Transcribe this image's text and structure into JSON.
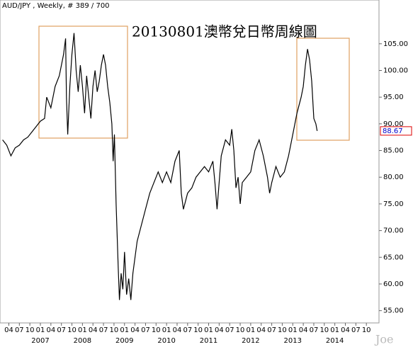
{
  "chart_data": {
    "type": "line",
    "header": "AUD/JPY , Weekly, # 389 / 700",
    "title": "20130801澳幣兌日幣周線圖",
    "watermark": "Joe",
    "color": "#000000",
    "last_value": 88.67,
    "x": [
      2006.1,
      2006.2,
      2006.3,
      2006.4,
      2006.5,
      2006.6,
      2006.7,
      2006.8,
      2006.9,
      2007.0,
      2007.1,
      2007.15,
      2007.25,
      2007.35,
      2007.45,
      2007.5,
      2007.55,
      2007.6,
      2007.62,
      2007.65,
      2007.7,
      2007.75,
      2007.8,
      2007.85,
      2007.9,
      2007.95,
      2008.0,
      2008.05,
      2008.1,
      2008.15,
      2008.2,
      2008.25,
      2008.3,
      2008.35,
      2008.4,
      2008.45,
      2008.5,
      2008.55,
      2008.6,
      2008.65,
      2008.7,
      2008.73,
      2008.76,
      2008.8,
      2008.85,
      2008.88,
      2008.92,
      2008.96,
      2009.0,
      2009.05,
      2009.1,
      2009.15,
      2009.2,
      2009.3,
      2009.4,
      2009.5,
      2009.6,
      2009.7,
      2009.8,
      2009.9,
      2010.0,
      2010.1,
      2010.2,
      2010.3,
      2010.35,
      2010.4,
      2010.5,
      2010.6,
      2010.7,
      2010.8,
      2010.9,
      2011.0,
      2011.1,
      2011.15,
      2011.2,
      2011.3,
      2011.4,
      2011.5,
      2011.55,
      2011.6,
      2011.65,
      2011.7,
      2011.75,
      2011.8,
      2011.9,
      2012.0,
      2012.1,
      2012.2,
      2012.3,
      2012.4,
      2012.45,
      2012.5,
      2012.6,
      2012.7,
      2012.8,
      2012.9,
      2013.0,
      2013.1,
      2013.2,
      2013.25,
      2013.3,
      2013.35,
      2013.4,
      2013.45,
      2013.5,
      2013.55,
      2013.58
    ],
    "values": [
      87,
      86,
      84,
      85.5,
      86,
      87,
      87.5,
      88.5,
      89.5,
      90.5,
      91,
      95,
      93,
      97,
      99,
      101,
      103,
      106,
      95,
      88,
      97,
      103,
      107,
      100,
      96,
      101,
      97,
      92,
      99,
      95,
      91,
      97,
      100,
      96,
      98,
      101,
      103,
      101,
      97,
      94,
      90,
      83,
      88,
      75,
      63,
      57,
      62,
      59,
      66,
      58,
      61,
      57,
      62,
      68,
      71,
      74,
      77,
      79,
      81,
      79,
      81,
      79,
      83,
      85,
      77,
      74,
      77,
      78,
      80,
      81,
      82,
      81,
      83,
      79,
      74,
      84,
      87,
      86,
      89,
      85,
      78,
      80,
      75,
      79,
      80,
      81,
      85,
      87,
      84,
      80,
      77,
      79,
      82,
      80,
      81,
      84,
      88,
      92,
      95,
      97,
      101,
      104,
      102,
      98,
      91,
      90,
      88.67
    ],
    "xlim": [
      2006.04,
      2015.05
    ],
    "ylim": [
      52.7,
      113.2
    ],
    "yticks": [
      {
        "value": 55,
        "label": "55.00"
      },
      {
        "value": 60,
        "label": "60.00"
      },
      {
        "value": 65,
        "label": "65.00"
      },
      {
        "value": 70,
        "label": "70.00"
      },
      {
        "value": 75,
        "label": "75.00"
      },
      {
        "value": 80,
        "label": "80.00"
      },
      {
        "value": 85,
        "label": "85.00"
      },
      {
        "value": 90,
        "label": "90.00"
      },
      {
        "value": 95,
        "label": "95.00"
      },
      {
        "value": 100,
        "label": "100.00"
      },
      {
        "value": 105,
        "label": "105.00"
      }
    ],
    "xticks": [
      {
        "value": 2006.25,
        "label": "04"
      },
      {
        "value": 2006.5,
        "label": "07"
      },
      {
        "value": 2006.75,
        "label": "10"
      },
      {
        "value": 2007.0,
        "label": "01"
      },
      {
        "value": 2007.25,
        "label": "04"
      },
      {
        "value": 2007.5,
        "label": "07"
      },
      {
        "value": 2007.75,
        "label": "10"
      },
      {
        "value": 2008.0,
        "label": "01"
      },
      {
        "value": 2008.25,
        "label": "04"
      },
      {
        "value": 2008.5,
        "label": "07"
      },
      {
        "value": 2008.75,
        "label": "10"
      },
      {
        "value": 2009.0,
        "label": "01"
      },
      {
        "value": 2009.25,
        "label": "04"
      },
      {
        "value": 2009.5,
        "label": "07"
      },
      {
        "value": 2009.75,
        "label": "10"
      },
      {
        "value": 2010.0,
        "label": "01"
      },
      {
        "value": 2010.25,
        "label": "04"
      },
      {
        "value": 2010.5,
        "label": "07"
      },
      {
        "value": 2010.75,
        "label": "10"
      },
      {
        "value": 2011.0,
        "label": "01"
      },
      {
        "value": 2011.25,
        "label": "04"
      },
      {
        "value": 2011.5,
        "label": "07"
      },
      {
        "value": 2011.75,
        "label": "10"
      },
      {
        "value": 2012.0,
        "label": "01"
      },
      {
        "value": 2012.25,
        "label": "04"
      },
      {
        "value": 2012.5,
        "label": "07"
      },
      {
        "value": 2012.75,
        "label": "10"
      },
      {
        "value": 2013.0,
        "label": "01"
      },
      {
        "value": 2013.25,
        "label": "04"
      },
      {
        "value": 2013.5,
        "label": "07"
      },
      {
        "value": 2013.75,
        "label": "10"
      },
      {
        "value": 2014.0,
        "label": "01"
      },
      {
        "value": 2014.25,
        "label": "04"
      },
      {
        "value": 2014.5,
        "label": "07"
      },
      {
        "value": 2014.75,
        "label": "10"
      }
    ],
    "year_labels": [
      2007,
      2008,
      2009,
      2010,
      2011,
      2012,
      2013,
      2014
    ]
  }
}
